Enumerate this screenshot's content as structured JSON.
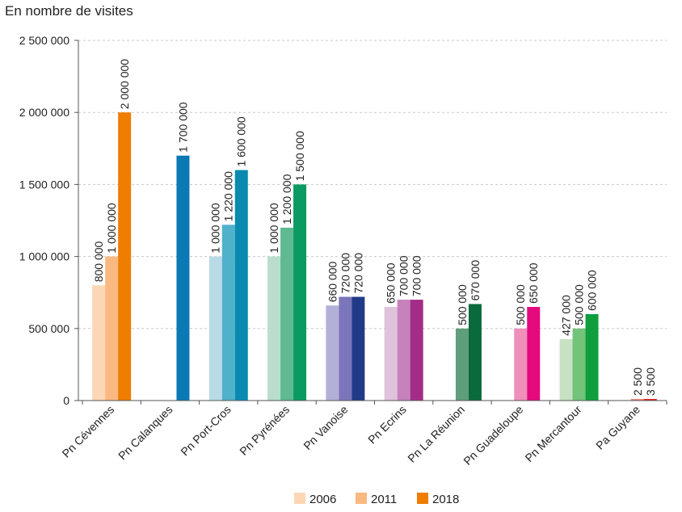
{
  "chart_data": {
    "type": "bar",
    "title": "En nombre de visites",
    "categories": [
      "Pn Cévennes",
      "Pn Calanques",
      "Pn Port-Cros",
      "Pn Pyrénées",
      "Pn Vanoise",
      "Pn Ecrins",
      "Pn La Réunion",
      "Pn Guadeloupe",
      "Pn Mercantour",
      "Pa Guyane"
    ],
    "series": [
      {
        "name": "2006",
        "values": [
          800000,
          null,
          1000000,
          1000000,
          660000,
          650000,
          null,
          null,
          427000,
          null
        ]
      },
      {
        "name": "2011",
        "values": [
          1000000,
          null,
          1220000,
          1200000,
          720000,
          700000,
          500000,
          500000,
          500000,
          2500
        ]
      },
      {
        "name": "2018",
        "values": [
          2000000,
          1700000,
          1600000,
          1500000,
          720000,
          700000,
          670000,
          650000,
          600000,
          3500
        ]
      }
    ],
    "data_labels": [
      [
        "800 000",
        null,
        "1 000 000",
        "1 000 000",
        "660 000",
        "650 000",
        null,
        null,
        "427 000",
        null
      ],
      [
        "1 000 000",
        null,
        "1 220 000",
        "1 200 000",
        "720 000",
        "700 000",
        "500 000",
        "500 000",
        "500 000",
        "2 500"
      ],
      [
        "2 000 000",
        "1 700 000",
        "1 600 000",
        "1 500 000",
        "720 000",
        "700 000",
        "670 000",
        "650 000",
        "600 000",
        "3 500"
      ]
    ],
    "bar_colors": [
      [
        "#fdd7b5",
        null,
        "#b9dbe6",
        "#b9decd",
        "#b2b0d8",
        "#dfc2dc",
        null,
        null,
        "#c7e2c2",
        null
      ],
      [
        "#f9b980",
        null,
        "#4fb1cb",
        "#5fb993",
        "#7b75bb",
        "#c582bb",
        "#5f9e7a",
        "#ef8fba",
        "#73c37b",
        "#ef8b80"
      ],
      [
        "#ee7d00",
        "#0a79b5",
        "#0a8ab0",
        "#0a9b62",
        "#213a87",
        "#a32c86",
        "#0a6a3c",
        "#e5097f",
        "#0f9e3e",
        "#e4251e"
      ]
    ],
    "y_ticks": [
      0,
      500000,
      1000000,
      1500000,
      2000000,
      2500000
    ],
    "y_tick_labels": [
      "0",
      "500 000",
      "1 000 000",
      "1 500 000",
      "2 000 000",
      "2 500 000"
    ],
    "ylim": [
      0,
      2500000
    ],
    "grid": "horizontal-dashed",
    "legend": {
      "position": "bottom",
      "items": [
        {
          "label": "2006",
          "color": "#fdd7b5"
        },
        {
          "label": "2011",
          "color": "#f9b980"
        },
        {
          "label": "2018",
          "color": "#ee7d00"
        }
      ]
    },
    "colors": {
      "axis": "#555555",
      "grid": "#c8c8c8"
    }
  }
}
